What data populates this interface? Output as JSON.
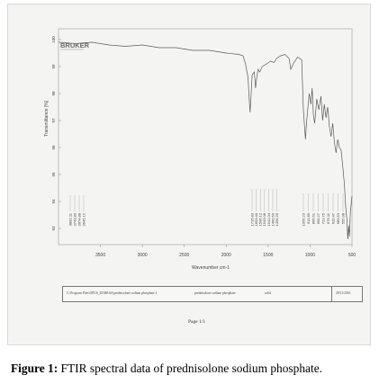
{
  "caption": {
    "label": "Figure 1:",
    "text": " FTIR spectral data of prednisolone sodium phosphate."
  },
  "spectrum_logo": "BRUKER",
  "sample_info": {
    "path": "C:\\Program Files\\OPUS_65\\MEAS\\prednisolone sodium phosphate.1",
    "sample": "prednisolone sodium phosphate",
    "state": "solid",
    "date": "29/11/2016"
  },
  "page_label": "Page 1/1",
  "chart_data": {
    "type": "line",
    "xlabel": "Wavenumber cm-1",
    "ylabel": "Transmittance [%]",
    "xlim": [
      4000,
      500
    ],
    "ylim": [
      92.4,
      100.4
    ],
    "x_ticks": [
      3500,
      3000,
      2500,
      2000,
      1500,
      1000,
      500
    ],
    "y_ticks": [
      93,
      94,
      95,
      96,
      97,
      98,
      99,
      100
    ],
    "line_color": "#5a5a5a",
    "series": [
      {
        "x": [
          4000,
          3800,
          3600,
          3400,
          3200,
          3000,
          2800,
          2600,
          2400,
          2200,
          2000,
          1850,
          1800,
          1770,
          1740,
          1720,
          1715,
          1710,
          1690,
          1665,
          1650,
          1640,
          1620,
          1600,
          1570,
          1520,
          1470,
          1430,
          1400,
          1350,
          1300,
          1250,
          1230,
          1200,
          1150,
          1100,
          1095,
          1080,
          1055,
          1040,
          1010,
          990,
          975,
          960,
          945,
          920,
          895,
          870,
          850,
          830,
          810,
          790,
          770,
          750,
          730,
          710,
          690,
          670,
          650,
          630,
          610,
          590,
          575,
          560,
          550,
          540,
          530,
          520,
          510,
          500
        ],
        "y": [
          99.9,
          99.85,
          99.9,
          99.8,
          99.75,
          99.8,
          99.7,
          99.7,
          99.6,
          99.6,
          99.5,
          99.45,
          99.4,
          99.1,
          98.6,
          97.5,
          97.3,
          97.6,
          98.7,
          98.8,
          98.2,
          98.5,
          98.9,
          98.8,
          99.0,
          99.1,
          99.2,
          99.15,
          99.3,
          99.4,
          99.45,
          99.3,
          98.9,
          99.1,
          99.35,
          99.25,
          98.8,
          97.4,
          96.3,
          97.0,
          98.0,
          97.6,
          98.2,
          97.2,
          96.9,
          97.8,
          97.4,
          97.9,
          97.0,
          97.6,
          97.1,
          97.5,
          96.8,
          96.4,
          96.9,
          96.2,
          95.8,
          96.3,
          96.0,
          95.9,
          95.3,
          94.6,
          93.8,
          93.3,
          92.6,
          93.1,
          92.7,
          93.6,
          93.9,
          94.2
        ]
      }
    ],
    "peak_labels_left": [
      "3882.11",
      "3743.89",
      "3674.88",
      "3645.12"
    ],
    "peak_labels_mid": [
      "1715.83",
      "1653.40",
      "1596.12",
      "1543.08",
      "1541.04",
      "1490.50",
      "1456.29"
    ],
    "peak_labels_right": [
      "1056.23",
      "911.89",
      "866.61",
      "695.27",
      "723.75",
      "675.11",
      "620.47",
      "583.53",
      "555.98"
    ]
  }
}
